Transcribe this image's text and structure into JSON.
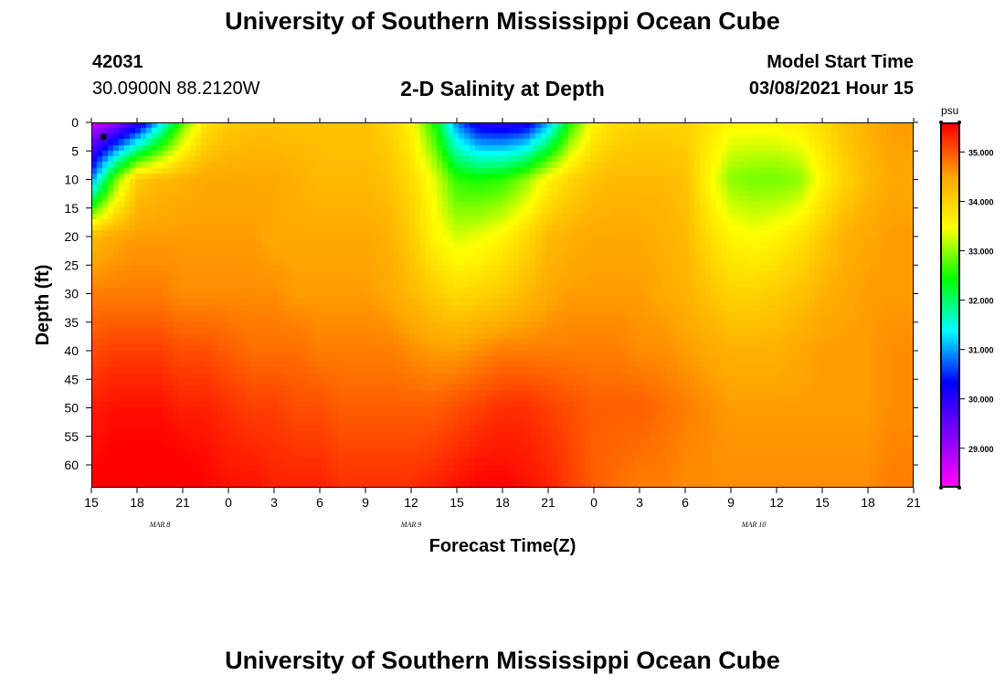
{
  "header": {
    "title": "University of Southern Mississippi Ocean Cube",
    "station_id": "42031",
    "station_coords": "30.0900N 88.2120W",
    "plot_subtitle": "2-D Salinity at Depth",
    "model_start_label": "Model Start Time",
    "model_start_time": "03/08/2021 Hour 15"
  },
  "footer": {
    "title": "University of Southern Mississippi Ocean Cube"
  },
  "chart_data": {
    "type": "heatmap",
    "title": "2-D Salinity at Depth",
    "xlabel": "Forecast Time(Z)",
    "ylabel": "Depth (ft)",
    "xlim": [
      0,
      54
    ],
    "ylim": [
      0,
      64
    ],
    "x_tick_labels": [
      "15",
      "18",
      "21",
      "0",
      "3",
      "6",
      "9",
      "12",
      "15",
      "18",
      "21",
      "0",
      "3",
      "6",
      "9",
      "12",
      "15",
      "18",
      "21"
    ],
    "y_ticks": [
      0,
      5,
      10,
      15,
      20,
      25,
      30,
      35,
      40,
      45,
      50,
      55,
      60
    ],
    "date_labels": [
      {
        "label": "MAR  8",
        "hours": 4.5
      },
      {
        "label": "MAR  9",
        "hours": 21
      },
      {
        "label": "MAR  10",
        "hours": 43.5
      }
    ],
    "colorbar": {
      "unit": "psu",
      "min": 28.2,
      "max": 35.6,
      "ticks": [
        "29.000",
        "30.000",
        "31.000",
        "32.000",
        "33.000",
        "34.000",
        "35.000"
      ],
      "colors": [
        "#ff00ff",
        "#8000ff",
        "#0000ff",
        "#00ffff",
        "#00ff00",
        "#ffff00",
        "#ffa500",
        "#ff0000"
      ]
    },
    "x_hours": [
      0,
      1.5,
      3,
      4.5,
      6,
      7.5,
      9,
      10.5,
      12,
      13.5,
      15,
      16.5,
      18,
      19.5,
      21,
      22.5,
      24,
      25.5,
      27,
      28.5,
      30,
      31.5,
      33,
      34.5,
      36,
      37.5,
      39,
      40.5,
      42,
      43.5,
      45,
      46.5,
      48,
      49.5,
      51,
      52.5,
      54
    ],
    "depths_ft": [
      0,
      10,
      20,
      30,
      40,
      50,
      64
    ],
    "salinity_psu": [
      [
        28.6,
        29.0,
        29.8,
        31.2,
        32.8,
        33.8,
        34.1,
        34.2,
        34.2,
        34.2,
        34.2,
        34.2,
        34.2,
        34.0,
        33.6,
        32.5,
        30.8,
        30.0,
        29.9,
        30.0,
        31.0,
        32.6,
        33.6,
        33.9,
        34.0,
        34.0,
        34.0,
        33.8,
        33.6,
        33.6,
        33.6,
        33.7,
        33.9,
        34.2,
        34.4,
        34.6,
        34.6
      ],
      [
        30.8,
        32.8,
        34.1,
        34.3,
        34.4,
        34.5,
        34.5,
        34.5,
        34.5,
        34.4,
        34.3,
        34.3,
        34.3,
        34.2,
        33.9,
        33.4,
        32.6,
        32.5,
        32.6,
        33.0,
        33.6,
        34.0,
        34.2,
        34.3,
        34.3,
        34.3,
        34.2,
        33.6,
        33.0,
        32.9,
        32.9,
        33.0,
        33.6,
        34.0,
        34.3,
        34.5,
        34.5
      ],
      [
        34.3,
        34.5,
        34.6,
        34.6,
        34.6,
        34.6,
        34.6,
        34.6,
        34.5,
        34.5,
        34.5,
        34.5,
        34.5,
        34.4,
        34.1,
        33.6,
        33.3,
        33.4,
        33.6,
        33.9,
        34.3,
        34.4,
        34.5,
        34.5,
        34.5,
        34.4,
        34.3,
        33.9,
        33.6,
        33.5,
        33.6,
        33.8,
        34.1,
        34.4,
        34.5,
        34.6,
        34.6
      ],
      [
        34.8,
        34.8,
        34.8,
        34.8,
        34.7,
        34.7,
        34.7,
        34.7,
        34.7,
        34.6,
        34.6,
        34.6,
        34.6,
        34.5,
        34.3,
        34.1,
        33.9,
        34.0,
        34.1,
        34.3,
        34.5,
        34.6,
        34.6,
        34.6,
        34.6,
        34.5,
        34.4,
        34.2,
        34.0,
        34.0,
        34.1,
        34.2,
        34.4,
        34.5,
        34.6,
        34.6,
        34.6
      ],
      [
        35.1,
        35.2,
        35.2,
        35.2,
        35.1,
        35.1,
        35.0,
        34.9,
        34.9,
        34.9,
        34.8,
        34.8,
        34.8,
        34.8,
        34.7,
        34.6,
        34.6,
        34.7,
        34.8,
        34.8,
        34.8,
        34.8,
        34.8,
        34.8,
        34.7,
        34.7,
        34.6,
        34.5,
        34.4,
        34.4,
        34.4,
        34.5,
        34.6,
        34.6,
        34.6,
        34.7,
        34.7
      ],
      [
        35.4,
        35.5,
        35.5,
        35.5,
        35.4,
        35.4,
        35.3,
        35.2,
        35.2,
        35.1,
        35.1,
        35.0,
        35.0,
        35.0,
        35.0,
        35.0,
        35.1,
        35.2,
        35.3,
        35.3,
        35.2,
        35.1,
        35.0,
        35.0,
        35.0,
        34.9,
        34.8,
        34.7,
        34.6,
        34.6,
        34.6,
        34.6,
        34.6,
        34.6,
        34.6,
        34.7,
        34.7
      ],
      [
        35.6,
        35.7,
        35.7,
        35.7,
        35.7,
        35.6,
        35.5,
        35.5,
        35.4,
        35.4,
        35.4,
        35.3,
        35.3,
        35.3,
        35.3,
        35.4,
        35.5,
        35.6,
        35.6,
        35.5,
        35.4,
        35.2,
        35.0,
        34.9,
        34.8,
        34.8,
        34.7,
        34.7,
        34.7,
        34.7,
        34.7,
        34.7,
        34.7,
        34.7,
        34.7,
        34.8,
        34.8
      ]
    ],
    "marker": {
      "hours": 0.8,
      "depth_ft": 2.5
    }
  }
}
